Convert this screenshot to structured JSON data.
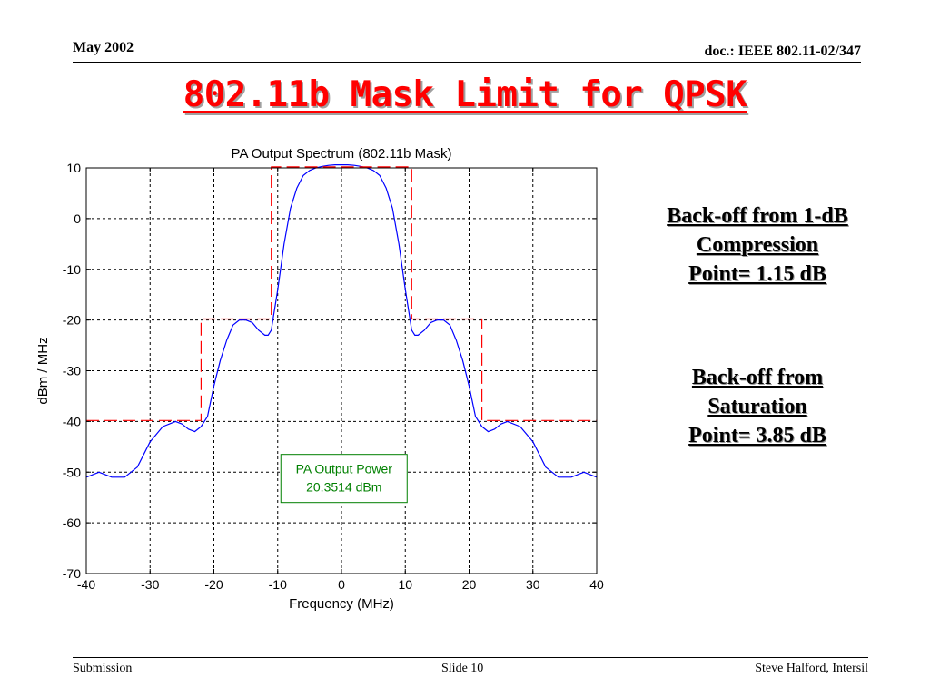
{
  "header": {
    "date": "May 2002",
    "doc": "doc.: IEEE 802.11-02/347"
  },
  "slide_title": "802.11b Mask Limit for QPSK",
  "notes": {
    "compression": [
      "Back-off from 1-dB",
      "Compression",
      "Point= 1.15 dB"
    ],
    "saturation": [
      "Back-off from",
      "Saturation",
      "Point= 3.85 dB"
    ]
  },
  "footer": {
    "left": "Submission",
    "center": "Slide 10",
    "right": "Steve Halford, Intersil"
  },
  "chart_data": {
    "type": "line",
    "title": "PA Output Spectrum (802.11b Mask)",
    "xlabel": "Frequency (MHz)",
    "ylabel": "dBm / MHz",
    "xlim": [
      -40,
      40
    ],
    "ylim": [
      -70,
      10
    ],
    "xticks": [
      -40,
      -30,
      -20,
      -10,
      0,
      10,
      20,
      30,
      40
    ],
    "yticks": [
      10,
      0,
      -10,
      -20,
      -30,
      -40,
      -50,
      -60,
      -70
    ],
    "grid": true,
    "annotation": {
      "lines": [
        "PA Output Power",
        "20.3514 dBm"
      ],
      "color": "#008000"
    },
    "series": [
      {
        "name": "",
        "color": "#0000ff",
        "style": "solid",
        "x": [
          -40,
          -38,
          -36,
          -34,
          -32,
          -30,
          -28,
          -26,
          -25,
          -24,
          -23,
          -22,
          -21,
          -20,
          -19,
          -18,
          -17,
          -16,
          -15,
          -14,
          -13,
          -12,
          -11.5,
          -11,
          -10,
          -9,
          -8,
          -7,
          -6,
          -5,
          -4,
          -3,
          -2,
          -1,
          0,
          1,
          2,
          3,
          4,
          5,
          6,
          7,
          8,
          9,
          10,
          11,
          11.5,
          12,
          13,
          14,
          15,
          16,
          17,
          18,
          19,
          20,
          21,
          22,
          23,
          24,
          25,
          26,
          28,
          30,
          32,
          34,
          36,
          38,
          40
        ],
        "y": [
          -51,
          -50,
          -51,
          -51,
          -49,
          -44,
          -41,
          -40,
          -40.5,
          -41.5,
          -42,
          -41,
          -39,
          -33,
          -28,
          -24,
          -21,
          -20,
          -20,
          -20.5,
          -22,
          -23,
          -23,
          -22,
          -14,
          -5,
          2,
          6,
          8.5,
          9.5,
          10,
          10.3,
          10.5,
          10.6,
          10.6,
          10.6,
          10.5,
          10.3,
          10,
          9.5,
          8.5,
          6,
          2,
          -5,
          -14,
          -22,
          -23,
          -23,
          -22,
          -20.5,
          -20,
          -20,
          -21,
          -24,
          -28,
          -33,
          -39,
          -41,
          -42,
          -41.5,
          -40.5,
          -40,
          -41,
          -44,
          -49,
          -51,
          -51,
          -50,
          -51
        ]
      },
      {
        "name": "",
        "color": "#ff0000",
        "style": "dashed",
        "x": [
          -40,
          -22,
          -22,
          -11,
          -11,
          11,
          11,
          22,
          22,
          40
        ],
        "y": [
          -39.8,
          -39.8,
          -19.8,
          -19.8,
          10.2,
          10.2,
          -19.8,
          -19.8,
          -39.8,
          -39.8
        ]
      }
    ]
  }
}
